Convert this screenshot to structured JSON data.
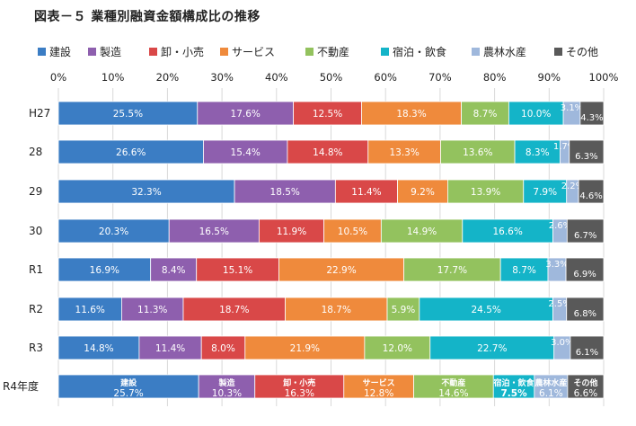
{
  "chart_data": {
    "type": "bar",
    "orientation": "horizontal",
    "stacked": "percent",
    "title": "図表－５ 業種別融資金額構成比の推移",
    "xlim": [
      0,
      100
    ],
    "xticks": [
      "0%",
      "10%",
      "20%",
      "30%",
      "40%",
      "50%",
      "60%",
      "70%",
      "80%",
      "90%",
      "100%"
    ],
    "legend_position": "top",
    "grid": true,
    "categories": [
      "H27",
      "28",
      "29",
      "30",
      "R1",
      "R2",
      "R3",
      "R4年度"
    ],
    "series": [
      {
        "name": "建設",
        "color": "#3b7dc4",
        "values": [
          25.5,
          26.6,
          32.3,
          20.3,
          16.9,
          11.6,
          14.8,
          25.7
        ]
      },
      {
        "name": "製造",
        "color": "#8e5fae",
        "values": [
          17.6,
          15.4,
          18.5,
          16.5,
          8.4,
          11.3,
          11.4,
          10.3
        ]
      },
      {
        "name": "卸・小売",
        "color": "#d94848",
        "values": [
          12.5,
          14.8,
          11.4,
          11.9,
          15.1,
          18.7,
          8.0,
          16.3
        ]
      },
      {
        "name": "サービス",
        "color": "#ef8a3c",
        "values": [
          18.3,
          13.3,
          9.2,
          10.5,
          22.9,
          18.7,
          21.9,
          12.8
        ]
      },
      {
        "name": "不動産",
        "color": "#93c25e",
        "values": [
          8.7,
          13.6,
          13.9,
          14.9,
          17.7,
          5.9,
          12.0,
          14.6
        ]
      },
      {
        "name": "宿泊・飲食",
        "color": "#14b4c8",
        "values": [
          10.0,
          8.3,
          7.9,
          16.6,
          8.7,
          24.5,
          22.7,
          7.5
        ]
      },
      {
        "name": "農林水産",
        "color": "#9fb8dc",
        "values": [
          3.1,
          1.7,
          2.2,
          2.6,
          3.3,
          2.5,
          3.0,
          6.1
        ]
      },
      {
        "name": "その他",
        "color": "#595959",
        "values": [
          4.3,
          6.3,
          4.6,
          6.7,
          6.9,
          6.8,
          6.1,
          6.6
        ]
      }
    ],
    "labels": [
      [
        "25.5%",
        "17.6%",
        "12.5%",
        "18.3%",
        "8.7%",
        "10.0%",
        "3.1%",
        "4.3%"
      ],
      [
        "26.6%",
        "15.4%",
        "14.8%",
        "13.3%",
        "13.6%",
        "8.3%",
        "1.7%",
        "6.3%"
      ],
      [
        "32.3%",
        "18.5%",
        "11.4%",
        "9.2%",
        "13.9%",
        "7.9%",
        "2.2%",
        "4.6%"
      ],
      [
        "20.3%",
        "16.5%",
        "11.9%",
        "10.5%",
        "14.9%",
        "16.6%",
        "2.6%",
        "6.7%"
      ],
      [
        "16.9%",
        "8.4%",
        "15.1%",
        "22.9%",
        "17.7%",
        "8.7%",
        "3.3%",
        "6.9%"
      ],
      [
        "11.6%",
        "11.3%",
        "18.7%",
        "18.7%",
        "5.9%",
        "24.5%",
        "2.5%",
        "6.8%"
      ],
      [
        "14.8%",
        "11.4%",
        "8.0%",
        "21.9%",
        "12.0%",
        "22.7%",
        "3.0%",
        "6.1%"
      ],
      [
        "25.7%",
        "10.3%",
        "16.3%",
        "12.8%",
        "14.6%",
        "7.5%",
        "6.1%",
        "6.6%"
      ]
    ],
    "inline_series_labels": [
      [
        "",
        "",
        "",
        "",
        "",
        "",
        "",
        ""
      ],
      [
        "",
        "",
        "",
        "",
        "",
        "",
        "",
        ""
      ],
      [
        "",
        "",
        "",
        "",
        "",
        "",
        "",
        ""
      ],
      [
        "",
        "",
        "",
        "",
        "",
        "",
        "",
        ""
      ],
      [
        "",
        "",
        "",
        "",
        "",
        "",
        "",
        ""
      ],
      [
        "",
        "",
        "",
        "",
        "",
        "",
        "",
        ""
      ],
      [
        "",
        "",
        "",
        "",
        "",
        "",
        "",
        ""
      ],
      [
        "建設",
        "製造",
        "卸・小売",
        "サービス",
        "不動産",
        "宿泊・飲食",
        "農林水産",
        "その他"
      ]
    ]
  }
}
